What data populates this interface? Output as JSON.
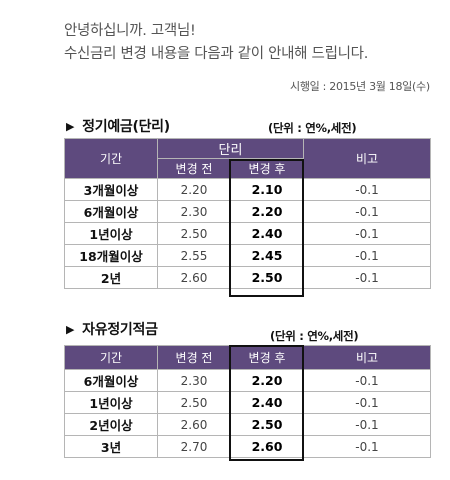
{
  "greeting": {
    "line1": "안녕하십니까. 고객님!",
    "line2": "수신금리 변경 내용을 다음과 같이 안내해 드립니다."
  },
  "effective_date": "시행일 : 2015년 3월 18일(수)",
  "section1": {
    "title": "정기예금(단리)",
    "unit": "(단위 : 연%,세전)",
    "headers": {
      "period": "기간",
      "group": "단리",
      "before": "변경 전",
      "after": "변경 후",
      "note": "비고"
    },
    "rows": [
      {
        "period": "3개월이상",
        "before": "2.20",
        "after": "2.10",
        "note": "-0.1"
      },
      {
        "period": "6개월이상",
        "before": "2.30",
        "after": "2.20",
        "note": "-0.1"
      },
      {
        "period": "1년이상",
        "before": "2.50",
        "after": "2.40",
        "note": "-0.1"
      },
      {
        "period": "18개월이상",
        "before": "2.55",
        "after": "2.45",
        "note": "-0.1"
      },
      {
        "period": "2년",
        "before": "2.60",
        "after": "2.50",
        "note": "-0.1"
      }
    ]
  },
  "section2": {
    "title": "자유정기적금",
    "unit": "(단위 : 연%,세전)",
    "headers": {
      "period": "기간",
      "before": "변경 전",
      "after": "변경 후",
      "note": "비고"
    },
    "rows": [
      {
        "period": "6개월이상",
        "before": "2.30",
        "after": "2.20",
        "note": "-0.1"
      },
      {
        "period": "1년이상",
        "before": "2.50",
        "after": "2.40",
        "note": "-0.1"
      },
      {
        "period": "2년이상",
        "before": "2.60",
        "after": "2.50",
        "note": "-0.1"
      },
      {
        "period": "3년",
        "before": "2.70",
        "after": "2.60",
        "note": "-0.1"
      }
    ]
  }
}
